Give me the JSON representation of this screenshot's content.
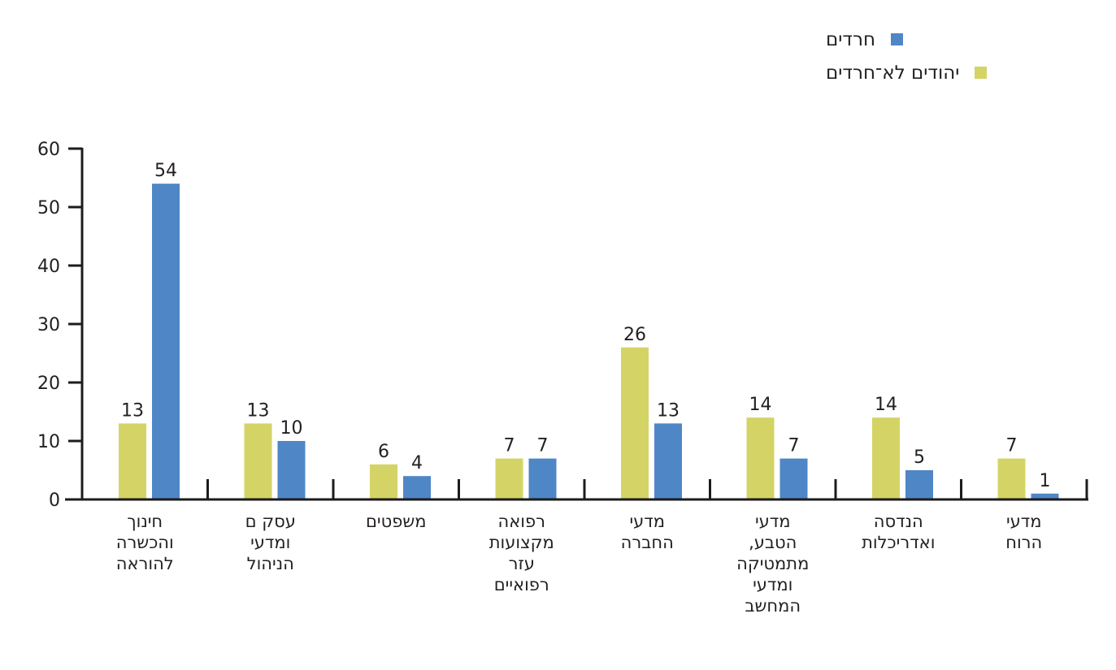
{
  "colors": {
    "haredim": "#4F86C6",
    "non_haredi_jews": "#D4D466",
    "axis": "#1c1c1c"
  },
  "legend": [
    {
      "label": "חרדים",
      "series": "haredim"
    },
    {
      "label": "יהודים לא־חרדים",
      "series": "non_haredi_jews"
    }
  ],
  "chart_data": {
    "type": "bar",
    "title": "",
    "xlabel": "",
    "ylabel": "",
    "ylim": [
      0,
      60
    ],
    "yticks": [
      0,
      10,
      20,
      30,
      40,
      50,
      60
    ],
    "grid": false,
    "legend_position": "top-right",
    "categories": [
      [
        "חינוך",
        "והכשרה",
        "להוראה"
      ],
      [
        "עסק ם",
        "ומדעי",
        "הניהול"
      ],
      [
        "משפטים"
      ],
      [
        "רפואה",
        "מקצועות",
        "עזר",
        "רפואיים"
      ],
      [
        "מדעי",
        "החברה"
      ],
      [
        "מדעי",
        "הטבע,",
        "מתמטיקה",
        "ומדעי",
        "המחשב"
      ],
      [
        "הנדסה",
        "ואדריכלות"
      ],
      [
        "מדעי",
        "הרוח"
      ]
    ],
    "series": [
      {
        "name": "יהודים לא־חרדים",
        "key": "non_haredi_jews",
        "values": [
          13,
          13,
          6,
          7,
          26,
          14,
          14,
          7
        ]
      },
      {
        "name": "חרדים",
        "key": "haredim",
        "values": [
          54,
          10,
          4,
          7,
          13,
          7,
          5,
          1
        ]
      }
    ]
  }
}
